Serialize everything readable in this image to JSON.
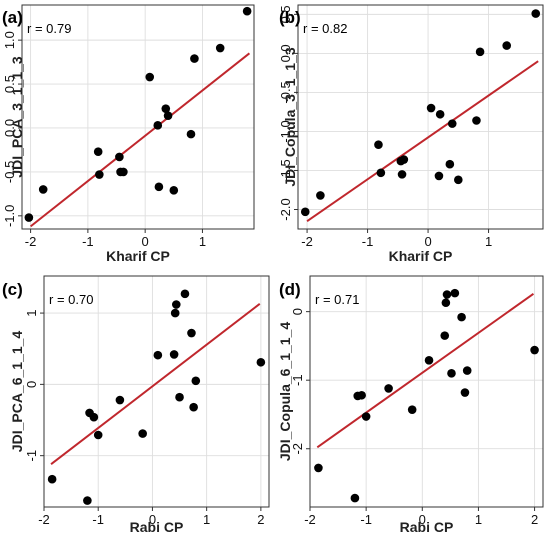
{
  "chart_data": [
    {
      "type": "scatter",
      "panel_label": "(a)",
      "r_label": "r = 0.79",
      "xlabel": "Kharif CP",
      "ylabel": "JDI_PCA_3_1_1_3",
      "xlim": [
        -2.15,
        1.9
      ],
      "ylim": [
        -1.15,
        1.4
      ],
      "x_ticks": [
        -2,
        -1,
        0,
        1
      ],
      "x_tick_labels": [
        "-2",
        "-1",
        "0",
        "1"
      ],
      "y_ticks": [
        -1.0,
        -0.5,
        0.0,
        0.5,
        1.0
      ],
      "y_tick_labels": [
        "-1.0",
        "-0.5",
        "0.0",
        "0.5",
        "1.0"
      ],
      "grid": true,
      "fit_line": [
        [
          -2.0,
          -1.12
        ],
        [
          1.82,
          0.85
        ]
      ],
      "points": [
        {
          "x": -2.03,
          "y": -1.02
        },
        {
          "x": -1.78,
          "y": -0.7
        },
        {
          "x": -0.82,
          "y": -0.27
        },
        {
          "x": -0.8,
          "y": -0.53
        },
        {
          "x": -0.45,
          "y": -0.33
        },
        {
          "x": -0.43,
          "y": -0.5
        },
        {
          "x": -0.38,
          "y": -0.5
        },
        {
          "x": 0.08,
          "y": 0.58
        },
        {
          "x": 0.22,
          "y": 0.03
        },
        {
          "x": 0.24,
          "y": -0.67
        },
        {
          "x": 0.36,
          "y": 0.22
        },
        {
          "x": 0.4,
          "y": 0.14
        },
        {
          "x": 0.5,
          "y": -0.71
        },
        {
          "x": 0.8,
          "y": -0.07
        },
        {
          "x": 0.86,
          "y": 0.79
        },
        {
          "x": 1.31,
          "y": 0.91
        },
        {
          "x": 1.78,
          "y": 1.33
        }
      ]
    },
    {
      "type": "scatter",
      "panel_label": "(b)",
      "r_label": "r = 0.82",
      "xlabel": "Kharif CP",
      "ylabel": "JDI_Copula_3_1_1_3",
      "xlim": [
        -2.15,
        1.9
      ],
      "ylim": [
        -2.25,
        0.62
      ],
      "x_ticks": [
        -2,
        -1,
        0,
        1
      ],
      "x_tick_labels": [
        "-2",
        "-1",
        "0",
        "1"
      ],
      "y_ticks": [
        -2.0,
        -1.5,
        -1.0,
        -0.5,
        0.0,
        0.5
      ],
      "y_tick_labels": [
        "-2.0",
        "-1.5",
        "-1.0",
        "-0.5",
        "0.0",
        "0.5"
      ],
      "grid": true,
      "fit_line": [
        [
          -2.0,
          -2.15
        ],
        [
          1.82,
          -0.1
        ]
      ],
      "points": [
        {
          "x": -2.03,
          "y": -2.03
        },
        {
          "x": -1.78,
          "y": -1.82
        },
        {
          "x": -0.82,
          "y": -1.17
        },
        {
          "x": -0.78,
          "y": -1.53
        },
        {
          "x": -0.45,
          "y": -1.38
        },
        {
          "x": -0.43,
          "y": -1.55
        },
        {
          "x": -0.4,
          "y": -1.36
        },
        {
          "x": 0.05,
          "y": -0.7
        },
        {
          "x": 0.18,
          "y": -1.57
        },
        {
          "x": 0.2,
          "y": -0.78
        },
        {
          "x": 0.36,
          "y": -1.42
        },
        {
          "x": 0.4,
          "y": -0.9
        },
        {
          "x": 0.5,
          "y": -1.62
        },
        {
          "x": 0.8,
          "y": -0.86
        },
        {
          "x": 0.86,
          "y": 0.02
        },
        {
          "x": 1.3,
          "y": 0.1
        },
        {
          "x": 1.78,
          "y": 0.51
        }
      ]
    },
    {
      "type": "scatter",
      "panel_label": "(c)",
      "r_label": "r = 0.70",
      "xlabel": "Rabi CP",
      "ylabel": "JDI_PCA_6_1_1_4",
      "xlim": [
        -2.0,
        2.15
      ],
      "ylim": [
        -1.72,
        1.52
      ],
      "x_ticks": [
        -2,
        -1,
        0,
        1,
        2
      ],
      "x_tick_labels": [
        "-2",
        "-1",
        "0",
        "1",
        "2"
      ],
      "y_ticks": [
        -1,
        0,
        1
      ],
      "y_tick_labels": [
        "-1",
        "0",
        "1"
      ],
      "grid": true,
      "fit_line": [
        [
          -1.87,
          -1.12
        ],
        [
          1.98,
          1.13
        ]
      ],
      "points": [
        {
          "x": -1.85,
          "y": -1.33
        },
        {
          "x": -1.2,
          "y": -1.63
        },
        {
          "x": -1.16,
          "y": -0.4
        },
        {
          "x": -1.08,
          "y": -0.46
        },
        {
          "x": -1.0,
          "y": -0.71
        },
        {
          "x": -0.6,
          "y": -0.22
        },
        {
          "x": -0.18,
          "y": -0.69
        },
        {
          "x": 0.1,
          "y": 0.41
        },
        {
          "x": 0.4,
          "y": 0.42
        },
        {
          "x": 0.42,
          "y": 1.0
        },
        {
          "x": 0.44,
          "y": 1.12
        },
        {
          "x": 0.5,
          "y": -0.18
        },
        {
          "x": 0.6,
          "y": 1.27
        },
        {
          "x": 0.72,
          "y": 0.72
        },
        {
          "x": 0.76,
          "y": -0.32
        },
        {
          "x": 0.8,
          "y": 0.05
        },
        {
          "x": 2.0,
          "y": 0.31
        }
      ]
    },
    {
      "type": "scatter",
      "panel_label": "(d)",
      "r_label": "r = 0.71",
      "xlabel": "Rabi CP",
      "ylabel": "JDI_Copula_6_1_1_4",
      "xlim": [
        -2.0,
        2.15
      ],
      "ylim": [
        -2.85,
        0.52
      ],
      "x_ticks": [
        -2,
        -1,
        0,
        1,
        2
      ],
      "x_tick_labels": [
        "-2",
        "-1",
        "0",
        "1",
        "2"
      ],
      "y_ticks": [
        -2,
        -1,
        0
      ],
      "y_tick_labels": [
        "-2",
        "-1",
        "0"
      ],
      "grid": true,
      "fit_line": [
        [
          -1.87,
          -1.98
        ],
        [
          1.98,
          0.26
        ]
      ],
      "points": [
        {
          "x": -1.85,
          "y": -2.28
        },
        {
          "x": -1.2,
          "y": -2.72
        },
        {
          "x": -1.15,
          "y": -1.23
        },
        {
          "x": -1.08,
          "y": -1.22
        },
        {
          "x": -1.0,
          "y": -1.53
        },
        {
          "x": -0.6,
          "y": -1.12
        },
        {
          "x": -0.18,
          "y": -1.43
        },
        {
          "x": 0.12,
          "y": -0.71
        },
        {
          "x": 0.4,
          "y": -0.35
        },
        {
          "x": 0.42,
          "y": 0.13
        },
        {
          "x": 0.44,
          "y": 0.25
        },
        {
          "x": 0.52,
          "y": -0.9
        },
        {
          "x": 0.58,
          "y": 0.27
        },
        {
          "x": 0.7,
          "y": -0.08
        },
        {
          "x": 0.76,
          "y": -1.18
        },
        {
          "x": 0.8,
          "y": -0.86
        },
        {
          "x": 2.0,
          "y": -0.56
        }
      ]
    }
  ],
  "colors": {
    "points": "#000000",
    "fit_line": "#c0272d",
    "grid": "#dedede",
    "frame": "#333333"
  }
}
